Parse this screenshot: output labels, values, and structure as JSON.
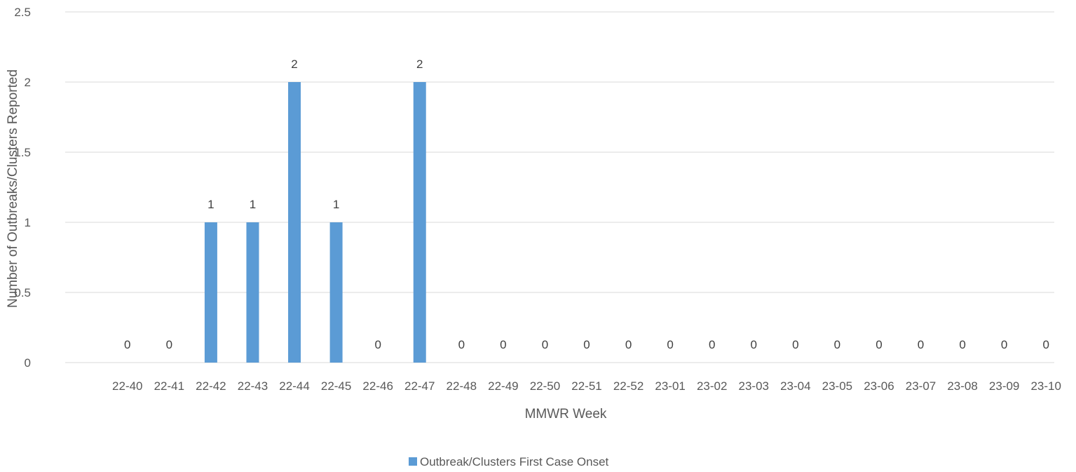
{
  "chart_data": {
    "type": "bar",
    "title": "",
    "xlabel": "MMWR Week",
    "ylabel": "Number of Outbreaks/Clusters Reported",
    "ylim": [
      0,
      2.5
    ],
    "yticks": [
      "0",
      "0.5",
      "1",
      "1.5",
      "2",
      "2.5"
    ],
    "grid": true,
    "legend_position": "bottom",
    "categories": [
      "22-40",
      "22-41",
      "22-42",
      "22-43",
      "22-44",
      "22-45",
      "22-46",
      "22-47",
      "22-48",
      "22-49",
      "22-50",
      "22-51",
      "22-52",
      "23-01",
      "23-02",
      "23-03",
      "23-04",
      "23-05",
      "23-06",
      "23-07",
      "23-08",
      "23-09",
      "23-10"
    ],
    "series": [
      {
        "name": "Outbreak/Clusters First Case Onset",
        "color": "#5b9bd5",
        "values": [
          0,
          0,
          1,
          1,
          2,
          1,
          0,
          2,
          0,
          0,
          0,
          0,
          0,
          0,
          0,
          0,
          0,
          0,
          0,
          0,
          0,
          0,
          0
        ]
      }
    ]
  }
}
